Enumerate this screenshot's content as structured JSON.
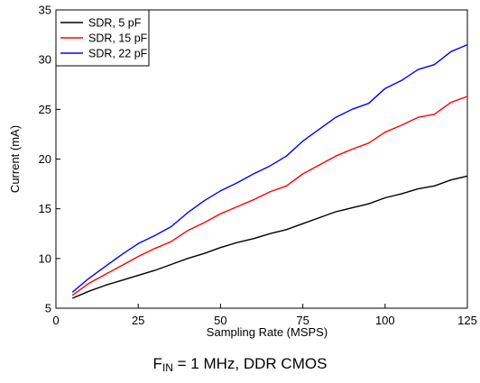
{
  "chart_data": {
    "type": "line",
    "xlabel": "Sampling Rate (MSPS)",
    "ylabel": "Current (mA)",
    "xlim": [
      0,
      125
    ],
    "ylim": [
      5,
      35
    ],
    "xticks": [
      0,
      25,
      50,
      75,
      100,
      125
    ],
    "yticks": [
      5,
      10,
      15,
      20,
      25,
      30,
      35
    ],
    "grid": false,
    "legend_position": "top-left",
    "x": [
      5,
      10,
      15,
      20,
      25,
      30,
      35,
      40,
      45,
      50,
      55,
      60,
      65,
      70,
      75,
      80,
      85,
      90,
      95,
      100,
      105,
      110,
      115,
      120,
      125
    ],
    "series": [
      {
        "name": "SDR, 5 pF",
        "color": "#000000",
        "values": [
          6.0,
          6.7,
          7.3,
          7.8,
          8.3,
          8.8,
          9.4,
          10.0,
          10.5,
          11.1,
          11.6,
          12.0,
          12.5,
          12.9,
          13.5,
          14.1,
          14.7,
          15.1,
          15.5,
          16.1,
          16.5,
          17.0,
          17.3,
          17.9,
          18.3
        ]
      },
      {
        "name": "SDR, 15 pF",
        "color": "#ff0000",
        "values": [
          6.3,
          7.5,
          8.4,
          9.3,
          10.2,
          11.0,
          11.7,
          12.8,
          13.6,
          14.5,
          15.2,
          15.9,
          16.7,
          17.3,
          18.5,
          19.4,
          20.3,
          21.0,
          21.6,
          22.7,
          23.4,
          24.2,
          24.5,
          25.7,
          26.3
        ]
      },
      {
        "name": "SDR, 22 pF",
        "color": "#0000ff",
        "values": [
          6.6,
          8.0,
          9.2,
          10.4,
          11.5,
          12.3,
          13.2,
          14.6,
          15.8,
          16.8,
          17.6,
          18.5,
          19.3,
          20.3,
          21.8,
          23.0,
          24.2,
          25.0,
          25.6,
          27.1,
          27.9,
          29.0,
          29.5,
          30.8,
          31.5
        ]
      }
    ]
  },
  "caption": {
    "prefix": "F",
    "subscript": "IN",
    "suffix": " = 1 MHz, DDR CMOS"
  }
}
